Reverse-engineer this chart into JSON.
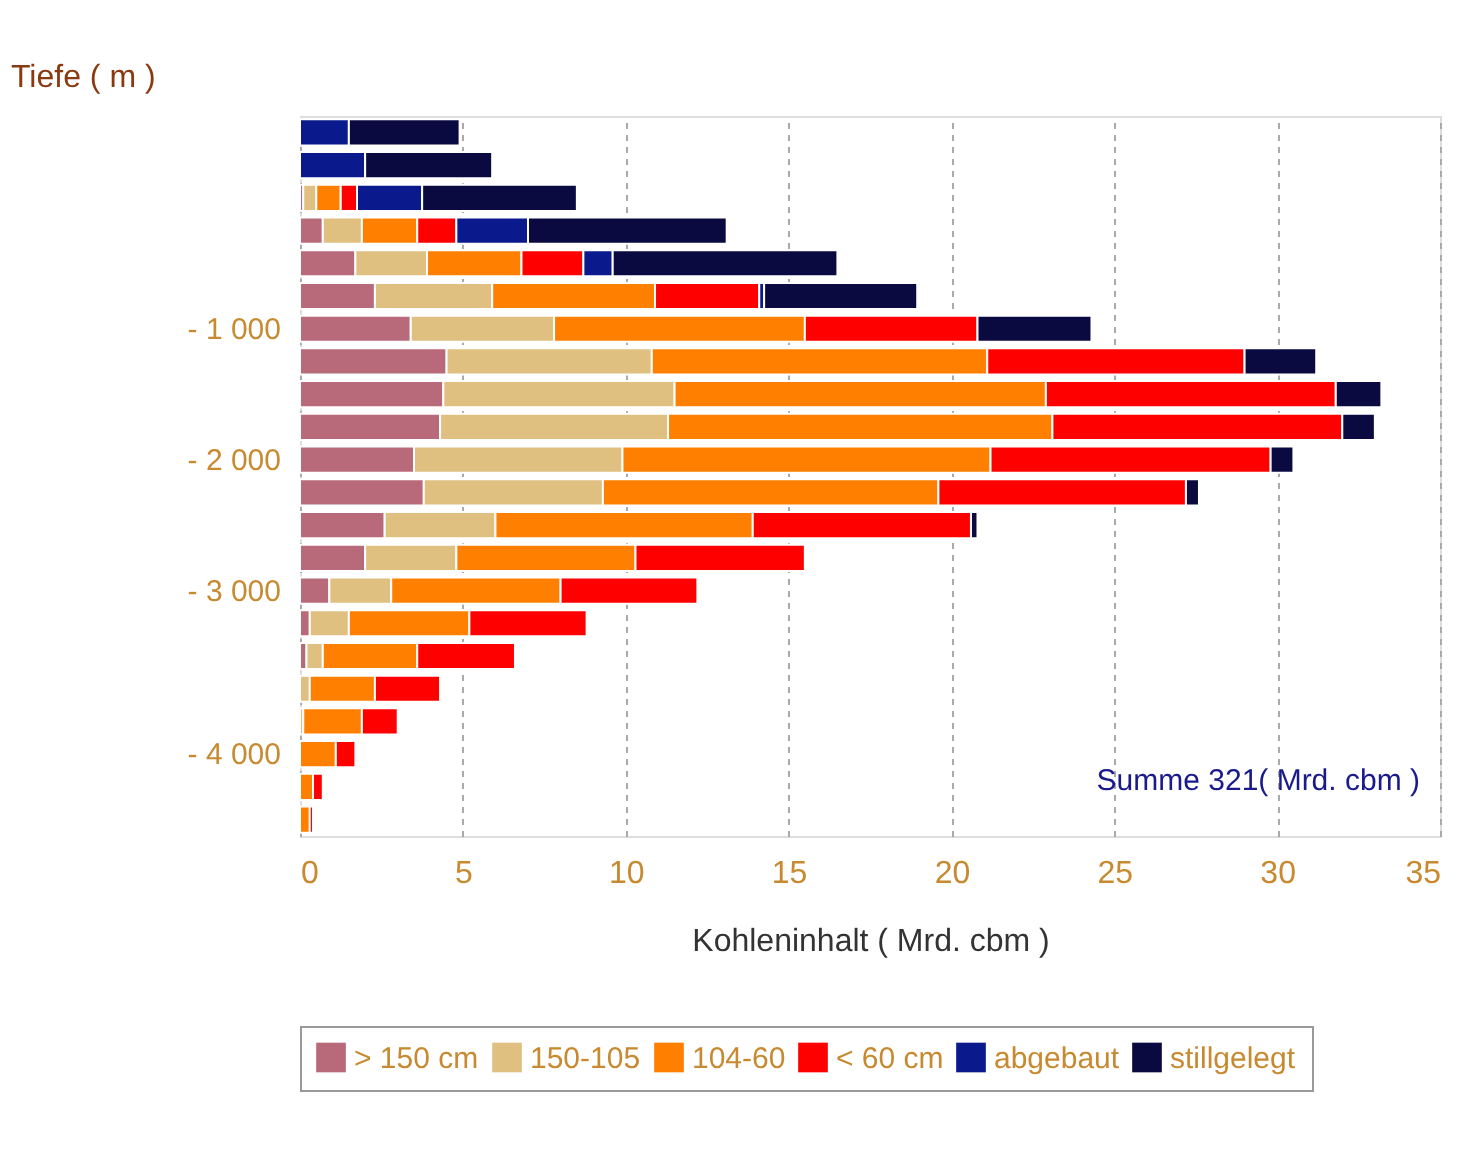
{
  "chart_data": {
    "type": "bar",
    "orientation": "horizontal",
    "stacked": true,
    "xlabel": "Kohleninhalt ( Mrd. cbm )",
    "ylabel": "Tiefe ( m )",
    "categories": [
      null,
      null,
      null,
      null,
      null,
      null,
      "- 1 000",
      null,
      null,
      null,
      "- 2 000",
      null,
      null,
      null,
      "- 3 000",
      null,
      null,
      null,
      null,
      "- 4 000",
      null,
      null
    ],
    "series": [
      {
        "name": "> 150 cm",
        "color": "#b86a7a",
        "values": [
          0,
          0,
          0.1,
          0.7,
          1.7,
          2.3,
          3.4,
          4.5,
          4.4,
          4.3,
          3.5,
          3.8,
          2.6,
          2.0,
          0.9,
          0.3,
          0.2,
          0,
          0,
          0,
          0,
          0
        ]
      },
      {
        "name": "150-105",
        "color": "#e0c080",
        "values": [
          0,
          0,
          0.4,
          1.2,
          2.2,
          3.6,
          4.4,
          6.3,
          7.1,
          7.0,
          6.4,
          5.5,
          3.4,
          2.8,
          1.9,
          1.2,
          0.5,
          0.3,
          0.1,
          0,
          0,
          0
        ]
      },
      {
        "name": "104-60",
        "color": "#ff8000",
        "values": [
          0,
          0,
          0.75,
          1.7,
          2.9,
          5.0,
          7.7,
          10.3,
          11.4,
          11.8,
          11.3,
          10.3,
          7.9,
          5.5,
          5.2,
          3.7,
          2.9,
          2.0,
          1.8,
          1.1,
          0.4,
          0.3
        ]
      },
      {
        "name": "< 60 cm",
        "color": "#ff0000",
        "values": [
          0,
          0,
          0.5,
          1.2,
          1.9,
          3.2,
          5.3,
          7.9,
          8.9,
          8.9,
          8.6,
          7.6,
          6.7,
          5.2,
          4.2,
          3.6,
          3.0,
          2.0,
          1.1,
          0.6,
          0.3,
          0.1
        ]
      },
      {
        "name": "abgebaut",
        "color": "#0a1a8c",
        "values": [
          1.5,
          2.0,
          2.0,
          2.2,
          0.9,
          0.15,
          0,
          0,
          0,
          0,
          0,
          0,
          0,
          0,
          0,
          0,
          0,
          0,
          0,
          0,
          0,
          0
        ]
      },
      {
        "name": "stillgelegt",
        "color": "#0a0a40",
        "values": [
          3.4,
          3.9,
          4.75,
          6.1,
          6.9,
          4.7,
          3.5,
          2.2,
          1.4,
          1.0,
          0.7,
          0.4,
          0.2,
          0,
          0,
          0,
          0,
          0,
          0,
          0,
          0,
          0
        ]
      }
    ],
    "xlim": [
      0,
      35
    ],
    "xticks": [
      0,
      5,
      10,
      15,
      20,
      25,
      30,
      35
    ],
    "grid": "x",
    "legend": "bottom",
    "annotations": [
      "Summe 321( Mrd. cbm )"
    ]
  }
}
